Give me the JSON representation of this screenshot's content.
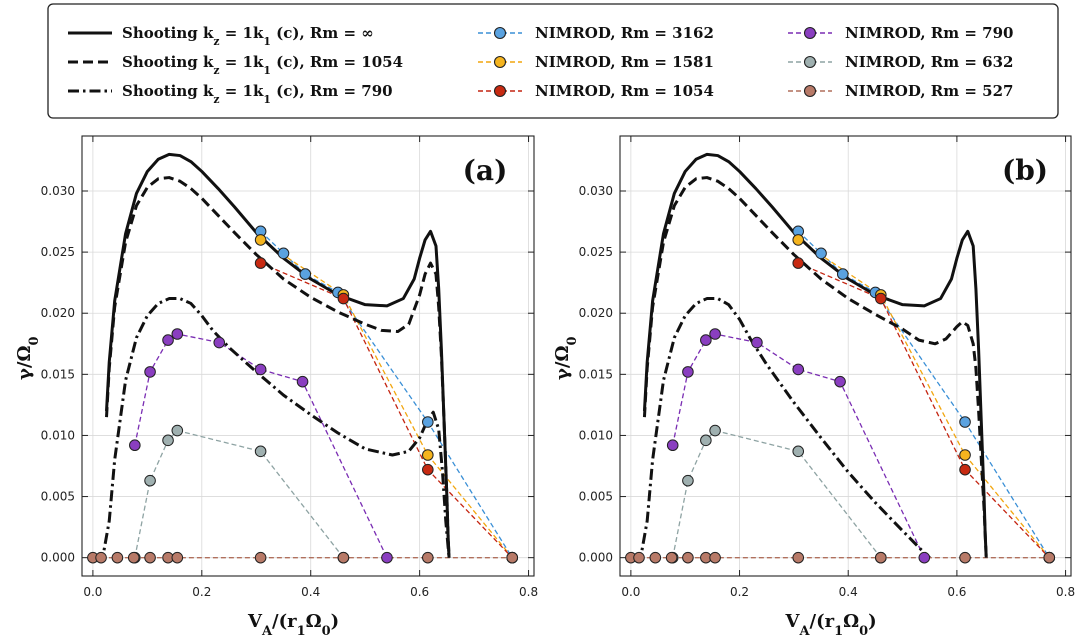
{
  "chart_data": {
    "type": "line",
    "legend": {
      "placement": "top",
      "entries": [
        {
          "key": "s_inf",
          "label": "Shooting k_z = 1k_1 (c), Rm = ∞"
        },
        {
          "key": "s_1054",
          "label": "Shooting k_z = 1k_1 (c), Rm = 1054"
        },
        {
          "key": "s_790",
          "label": "Shooting k_z = 1k_1 (c), Rm = 790"
        },
        {
          "key": "n_3162",
          "label": "NIMROD, Rm = 3162"
        },
        {
          "key": "n_1581",
          "label": "NIMROD, Rm = 1581"
        },
        {
          "key": "n_1054",
          "label": "NIMROD, Rm = 1054"
        },
        {
          "key": "n_790",
          "label": "NIMROD, Rm = 790"
        },
        {
          "key": "n_632",
          "label": "NIMROD, Rm = 632"
        },
        {
          "key": "n_527",
          "label": "NIMROD, Rm = 527"
        }
      ]
    },
    "styles": {
      "s_inf": {
        "color": "#111111",
        "dash": "solid"
      },
      "s_1054": {
        "color": "#111111",
        "dash": "dash"
      },
      "s_790": {
        "color": "#111111",
        "dash": "dashdot"
      },
      "n_3162": {
        "color": "#3a8fd6",
        "fill": "#5aa2e0"
      },
      "n_1581": {
        "color": "#f2a60f",
        "fill": "#f5b41e"
      },
      "n_1054": {
        "color": "#c42410",
        "fill": "#c72a12"
      },
      "n_790": {
        "color": "#7a2db3",
        "fill": "#8a3ec0"
      },
      "n_632": {
        "color": "#8ea3a3",
        "fill": "#9fb0b0"
      },
      "n_527": {
        "color": "#b06f5c",
        "fill": "#b87a68"
      }
    },
    "xlabel": "V_A/(r_1Ω_0)",
    "ylabel": "γ/Ω_0",
    "xlim": [
      -0.02,
      0.81
    ],
    "ylim": [
      -0.0015,
      0.0345
    ],
    "xticks": [
      0.0,
      0.2,
      0.4,
      0.6,
      0.8
    ],
    "xtick_labels": [
      "0.0",
      "0.2",
      "0.4",
      "0.6",
      "0.8"
    ],
    "yticks": [
      0.0,
      0.005,
      0.01,
      0.015,
      0.02,
      0.025,
      0.03
    ],
    "ytick_labels": [
      "0.000",
      "0.005",
      "0.010",
      "0.015",
      "0.020",
      "0.025",
      "0.030"
    ],
    "grid": true,
    "panels": [
      {
        "label": "(a)",
        "curves": [
          {
            "key": "s_inf",
            "x": [
              0.025,
              0.03,
              0.04,
              0.06,
              0.08,
              0.1,
              0.12,
              0.14,
              0.16,
              0.18,
              0.2,
              0.23,
              0.26,
              0.3,
              0.35,
              0.4,
              0.45,
              0.5,
              0.54,
              0.57,
              0.59,
              0.6,
              0.61,
              0.62,
              0.63,
              0.635,
              0.64,
              0.645,
              0.65,
              0.652,
              0.654
            ],
            "y": [
              0.012,
              0.016,
              0.021,
              0.0265,
              0.0298,
              0.0316,
              0.0326,
              0.033,
              0.0329,
              0.0324,
              0.0316,
              0.0302,
              0.0287,
              0.0266,
              0.0245,
              0.0228,
              0.0215,
              0.0207,
              0.0206,
              0.0212,
              0.0228,
              0.0245,
              0.026,
              0.0267,
              0.0255,
              0.022,
              0.017,
              0.011,
              0.005,
              0.002,
              0.0
            ]
          },
          {
            "key": "s_1054",
            "x": [
              0.025,
              0.03,
              0.04,
              0.06,
              0.08,
              0.1,
              0.12,
              0.14,
              0.16,
              0.18,
              0.2,
              0.23,
              0.26,
              0.3,
              0.35,
              0.4,
              0.45,
              0.5,
              0.53,
              0.56,
              0.58,
              0.6,
              0.61,
              0.62,
              0.63,
              0.635,
              0.64,
              0.645,
              0.65,
              0.652,
              0.654
            ],
            "y": [
              0.0115,
              0.0155,
              0.0205,
              0.0258,
              0.0288,
              0.0303,
              0.031,
              0.0311,
              0.0308,
              0.0302,
              0.0294,
              0.028,
              0.0266,
              0.0248,
              0.0228,
              0.0213,
              0.0201,
              0.0191,
              0.0186,
              0.0185,
              0.0191,
              0.0215,
              0.0232,
              0.0241,
              0.0232,
              0.0205,
              0.0165,
              0.011,
              0.005,
              0.002,
              0.0
            ]
          },
          {
            "key": "s_790",
            "x": [
              0.0,
              0.01,
              0.02,
              0.03,
              0.04,
              0.06,
              0.08,
              0.1,
              0.12,
              0.14,
              0.16,
              0.18,
              0.2,
              0.22,
              0.25,
              0.3,
              0.35,
              0.4,
              0.45,
              0.5,
              0.55,
              0.58,
              0.6,
              0.615,
              0.625,
              0.635,
              0.642,
              0.648,
              0.652,
              0.654
            ],
            "y": [
              0.0,
              0.0,
              0.0005,
              0.003,
              0.008,
              0.0145,
              0.018,
              0.0198,
              0.0208,
              0.0212,
              0.0212,
              0.0208,
              0.0198,
              0.0186,
              0.0172,
              0.0152,
              0.0133,
              0.0117,
              0.0102,
              0.0089,
              0.0084,
              0.0087,
              0.0098,
              0.0113,
              0.0119,
              0.0105,
              0.007,
              0.003,
              0.001,
              0.0
            ]
          }
        ],
        "series": [
          {
            "key": "n_3162",
            "x": [
              0.308,
              0.35,
              0.39,
              0.45,
              0.615,
              0.77
            ],
            "y": [
              0.0267,
              0.0249,
              0.0232,
              0.0217,
              0.0111,
              0.0
            ]
          },
          {
            "key": "n_1581",
            "x": [
              0.308,
              0.46,
              0.615,
              0.77
            ],
            "y": [
              0.026,
              0.0215,
              0.0084,
              0.0
            ]
          },
          {
            "key": "n_1054",
            "x": [
              0.308,
              0.46,
              0.615,
              0.77
            ],
            "y": [
              0.0241,
              0.0212,
              0.0072,
              0.0
            ]
          },
          {
            "key": "n_790",
            "x": [
              0.077,
              0.105,
              0.138,
              0.155,
              0.232,
              0.308,
              0.385,
              0.54
            ],
            "y": [
              0.0092,
              0.0152,
              0.0178,
              0.0183,
              0.0176,
              0.0154,
              0.0144,
              0.0
            ]
          },
          {
            "key": "n_632",
            "x": [
              0.077,
              0.105,
              0.138,
              0.155,
              0.308,
              0.46
            ],
            "y": [
              0.0,
              0.0063,
              0.0096,
              0.0104,
              0.0087,
              0.0
            ]
          },
          {
            "key": "n_527",
            "x": [
              0.0,
              0.015,
              0.045,
              0.075,
              0.105,
              0.138,
              0.155,
              0.308,
              0.46,
              0.615,
              0.77
            ],
            "y": [
              0.0,
              0.0,
              0.0,
              0.0,
              0.0,
              0.0,
              0.0,
              0.0,
              0.0,
              0.0,
              0.0
            ]
          }
        ]
      },
      {
        "label": "(b)",
        "curves": [
          {
            "key": "s_inf",
            "x": [
              0.025,
              0.03,
              0.04,
              0.06,
              0.08,
              0.1,
              0.12,
              0.14,
              0.16,
              0.18,
              0.2,
              0.23,
              0.26,
              0.3,
              0.35,
              0.4,
              0.45,
              0.5,
              0.54,
              0.57,
              0.59,
              0.6,
              0.61,
              0.62,
              0.63,
              0.635,
              0.64,
              0.645,
              0.65,
              0.652,
              0.654
            ],
            "y": [
              0.012,
              0.016,
              0.021,
              0.0265,
              0.0298,
              0.0316,
              0.0326,
              0.033,
              0.0329,
              0.0324,
              0.0316,
              0.0302,
              0.0287,
              0.0266,
              0.0245,
              0.0228,
              0.0215,
              0.0207,
              0.0206,
              0.0212,
              0.0228,
              0.0245,
              0.026,
              0.0267,
              0.0255,
              0.022,
              0.017,
              0.011,
              0.005,
              0.002,
              0.0
            ]
          },
          {
            "key": "s_1054",
            "x": [
              0.025,
              0.03,
              0.04,
              0.06,
              0.08,
              0.1,
              0.12,
              0.14,
              0.16,
              0.18,
              0.2,
              0.23,
              0.26,
              0.3,
              0.35,
              0.4,
              0.45,
              0.5,
              0.53,
              0.56,
              0.58,
              0.6,
              0.61,
              0.62,
              0.63,
              0.635,
              0.64,
              0.645,
              0.65,
              0.652,
              0.654
            ],
            "y": [
              0.0115,
              0.0155,
              0.0205,
              0.0258,
              0.0288,
              0.0303,
              0.031,
              0.0311,
              0.0308,
              0.0302,
              0.0294,
              0.028,
              0.0266,
              0.0248,
              0.0228,
              0.0212,
              0.0199,
              0.0187,
              0.0178,
              0.0175,
              0.0179,
              0.0189,
              0.0193,
              0.019,
              0.0175,
              0.0155,
              0.012,
              0.008,
              0.004,
              0.002,
              0.0
            ]
          },
          {
            "key": "s_790",
            "x": [
              0.0,
              0.01,
              0.02,
              0.03,
              0.04,
              0.06,
              0.08,
              0.1,
              0.12,
              0.14,
              0.16,
              0.18,
              0.2,
              0.22,
              0.25,
              0.3,
              0.35,
              0.4,
              0.45,
              0.5,
              0.52,
              0.54,
              0.55
            ],
            "y": [
              0.0,
              0.0,
              0.0005,
              0.003,
              0.008,
              0.0145,
              0.018,
              0.0198,
              0.0208,
              0.0212,
              0.0212,
              0.0207,
              0.0195,
              0.0179,
              0.0158,
              0.0127,
              0.0098,
              0.007,
              0.0045,
              0.0022,
              0.0013,
              0.0004,
              0.0
            ]
          }
        ],
        "series": [
          {
            "key": "n_3162",
            "x": [
              0.308,
              0.35,
              0.39,
              0.45,
              0.615,
              0.77
            ],
            "y": [
              0.0267,
              0.0249,
              0.0232,
              0.0217,
              0.0111,
              0.0
            ]
          },
          {
            "key": "n_1581",
            "x": [
              0.308,
              0.46,
              0.615,
              0.77
            ],
            "y": [
              0.026,
              0.0215,
              0.0084,
              0.0
            ]
          },
          {
            "key": "n_1054",
            "x": [
              0.308,
              0.46,
              0.615,
              0.77
            ],
            "y": [
              0.0241,
              0.0212,
              0.0072,
              0.0
            ]
          },
          {
            "key": "n_790",
            "x": [
              0.077,
              0.105,
              0.138,
              0.155,
              0.232,
              0.308,
              0.385,
              0.54
            ],
            "y": [
              0.0092,
              0.0152,
              0.0178,
              0.0183,
              0.0176,
              0.0154,
              0.0144,
              0.0
            ]
          },
          {
            "key": "n_632",
            "x": [
              0.077,
              0.105,
              0.138,
              0.155,
              0.308,
              0.46
            ],
            "y": [
              0.0,
              0.0063,
              0.0096,
              0.0104,
              0.0087,
              0.0
            ]
          },
          {
            "key": "n_527",
            "x": [
              0.0,
              0.015,
              0.045,
              0.075,
              0.105,
              0.138,
              0.155,
              0.308,
              0.46,
              0.615,
              0.77
            ],
            "y": [
              0.0,
              0.0,
              0.0,
              0.0,
              0.0,
              0.0,
              0.0,
              0.0,
              0.0,
              0.0,
              0.0
            ]
          }
        ]
      }
    ]
  }
}
